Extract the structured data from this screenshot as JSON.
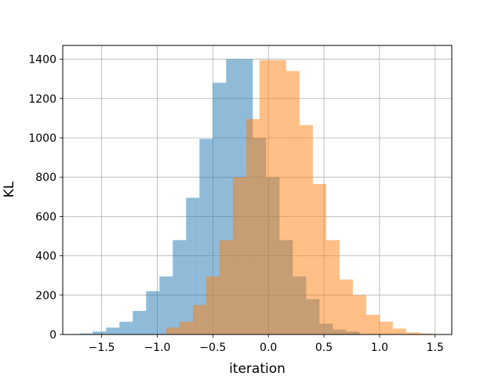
{
  "chart_data": {
    "type": "histogram",
    "title": "",
    "xlabel": "iteration",
    "ylabel": "KL",
    "xlim": [
      -1.85,
      1.65
    ],
    "ylim": [
      0,
      1470
    ],
    "grid": true,
    "x_ticks": [
      -1.5,
      -1.0,
      -0.5,
      0.0,
      0.5,
      1.0,
      1.5
    ],
    "x_tick_labels": [
      "−1.5",
      "−1.0",
      "−0.5",
      "0.0",
      "0.5",
      "1.0",
      "1.5"
    ],
    "y_ticks": [
      0,
      200,
      400,
      600,
      800,
      1000,
      1200,
      1400
    ],
    "y_tick_labels": [
      "0",
      "200",
      "400",
      "600",
      "800",
      "1000",
      "1200",
      "1400"
    ],
    "series": [
      {
        "color": "#1f77b4",
        "opacity": 0.5,
        "bin_edges": [
          -1.7,
          -1.58,
          -1.46,
          -1.34,
          -1.22,
          -1.1,
          -0.98,
          -0.86,
          -0.74,
          -0.62,
          -0.5,
          -0.38,
          -0.26,
          -0.14,
          -0.02,
          0.1,
          0.22,
          0.34,
          0.46,
          0.58,
          0.7,
          0.82
        ],
        "counts": [
          5,
          15,
          35,
          65,
          120,
          220,
          295,
          480,
          695,
          995,
          1280,
          1400,
          1400,
          1000,
          800,
          480,
          295,
          180,
          55,
          25,
          15
        ]
      },
      {
        "color": "#ff7f0e",
        "opacity": 0.5,
        "bin_edges": [
          -0.92,
          -0.8,
          -0.68,
          -0.56,
          -0.44,
          -0.32,
          -0.2,
          -0.08,
          0.04,
          0.16,
          0.28,
          0.4,
          0.52,
          0.64,
          0.76,
          0.88,
          1.0,
          1.12,
          1.24,
          1.36,
          1.48
        ],
        "counts": [
          35,
          65,
          150,
          295,
          480,
          800,
          1095,
          1395,
          1395,
          1340,
          1065,
          765,
          480,
          280,
          200,
          100,
          65,
          30,
          10,
          5
        ]
      }
    ]
  }
}
